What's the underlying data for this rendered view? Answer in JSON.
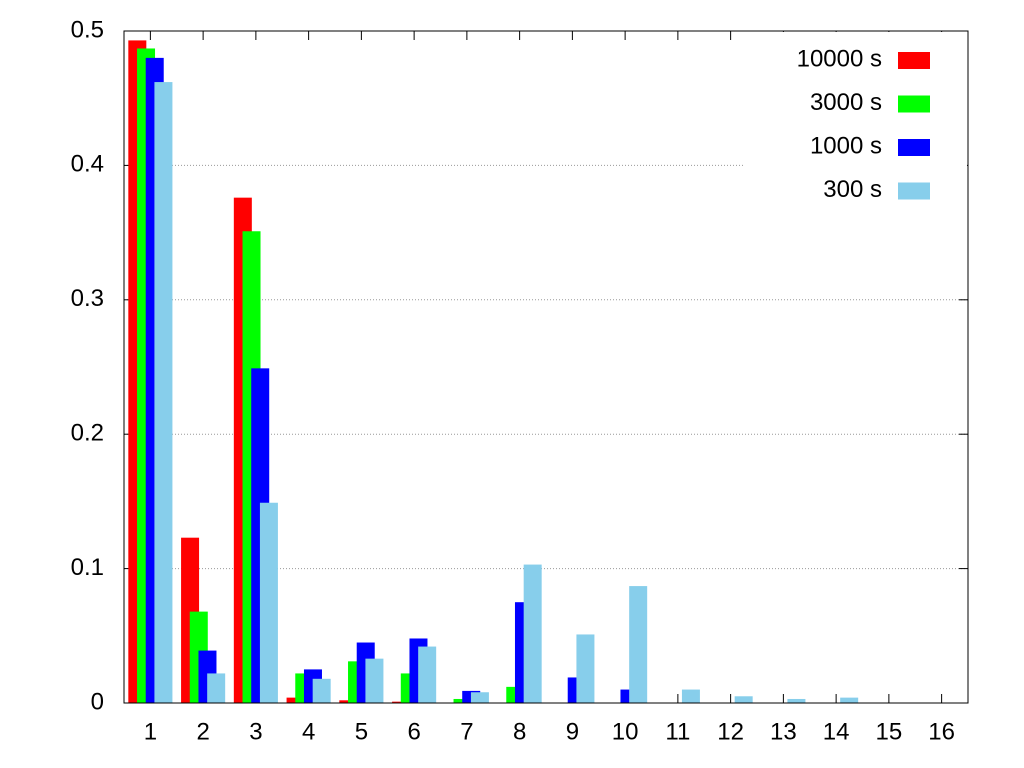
{
  "chart_data": {
    "type": "bar",
    "categories": [
      "1",
      "2",
      "3",
      "4",
      "5",
      "6",
      "7",
      "8",
      "9",
      "10",
      "11",
      "12",
      "13",
      "14",
      "15",
      "16"
    ],
    "series": [
      {
        "name": "10000 s",
        "color": "#ff0000",
        "values": [
          0.493,
          0.123,
          0.376,
          0.004,
          0.002,
          0.001,
          0,
          0,
          0,
          0,
          0,
          0,
          0,
          0,
          0,
          0
        ]
      },
      {
        "name": "3000 s",
        "color": "#00ff00",
        "values": [
          0.487,
          0.068,
          0.351,
          0.022,
          0.031,
          0.022,
          0.003,
          0.012,
          0,
          0,
          0,
          0,
          0,
          0,
          0,
          0
        ]
      },
      {
        "name": "1000 s",
        "color": "#0000ff",
        "values": [
          0.48,
          0.039,
          0.249,
          0.025,
          0.045,
          0.048,
          0.009,
          0.075,
          0.019,
          0.01,
          0,
          0,
          0,
          0,
          0,
          0
        ]
      },
      {
        "name": "300 s",
        "color": "#87ceeb",
        "values": [
          0.462,
          0.022,
          0.149,
          0.018,
          0.033,
          0.042,
          0.008,
          0.103,
          0.051,
          0.087,
          0.01,
          0.005,
          0.003,
          0.004,
          0,
          0
        ]
      }
    ],
    "ylim": [
      0,
      0.5
    ],
    "yticks": [
      0,
      0.1,
      0.2,
      0.3,
      0.4,
      0.5
    ],
    "grid": true,
    "legend": "top-right"
  }
}
